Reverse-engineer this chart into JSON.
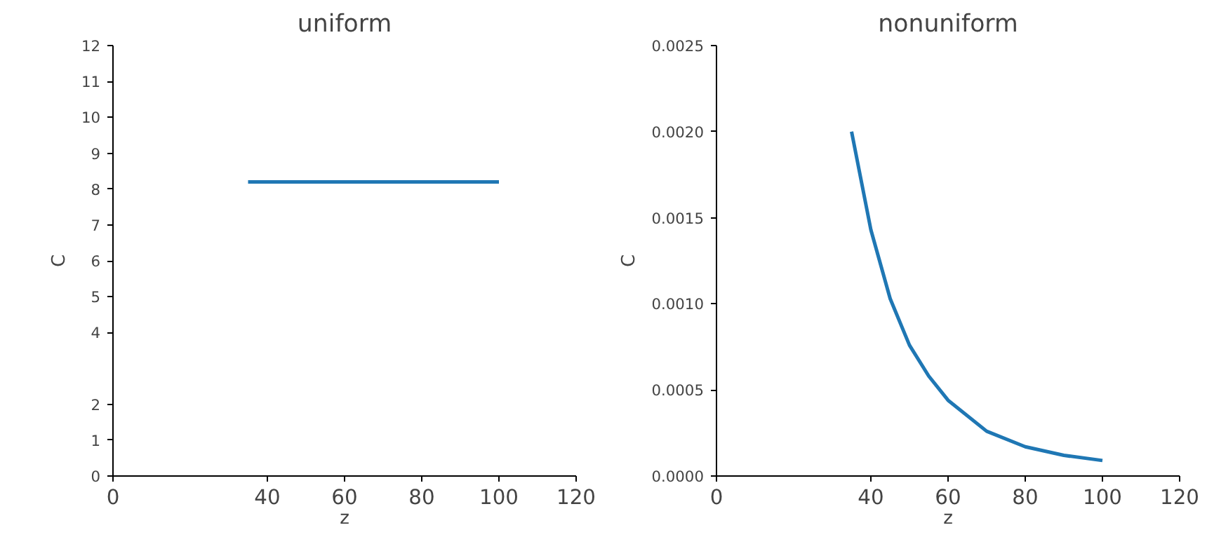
{
  "chart_data": [
    {
      "type": "line",
      "title": "uniform",
      "xlabel": "z",
      "ylabel": "C",
      "xlim": [
        0,
        120
      ],
      "xticks": [
        0,
        40,
        60,
        80,
        100,
        120
      ],
      "ylim": [
        0,
        12
      ],
      "yticks": [
        0,
        1,
        2,
        4,
        5,
        6,
        7,
        8,
        9,
        10,
        11,
        12
      ],
      "x": [
        35,
        100
      ],
      "series": [
        {
          "color": "#1f77b4",
          "values": [
            8.2,
            8.2
          ]
        }
      ]
    },
    {
      "type": "line",
      "title": "nonuniform",
      "xlabel": "z",
      "ylabel": "C",
      "xlim": [
        0,
        120
      ],
      "xticks": [
        0,
        40,
        60,
        80,
        100,
        120
      ],
      "ylim": [
        0,
        0.0025
      ],
      "yticks": [
        {
          "value": 0,
          "label": "0.0000"
        },
        {
          "value": 0.0005,
          "label": "0.0005"
        },
        {
          "value": 0.001,
          "label": "0.0010"
        },
        {
          "value": 0.0015,
          "label": "0.0015"
        },
        {
          "value": 0.002,
          "label": "0.0020"
        },
        {
          "value": 0.0025,
          "label": "0.0025"
        }
      ],
      "x": [
        35,
        40,
        45,
        50,
        55,
        60,
        70,
        80,
        90,
        100
      ],
      "series": [
        {
          "color": "#1f77b4",
          "values": [
            0.002,
            0.00143,
            0.00103,
            0.00076,
            0.00058,
            0.00044,
            0.00026,
            0.00017,
            0.00012,
            9e-05
          ]
        }
      ]
    }
  ]
}
